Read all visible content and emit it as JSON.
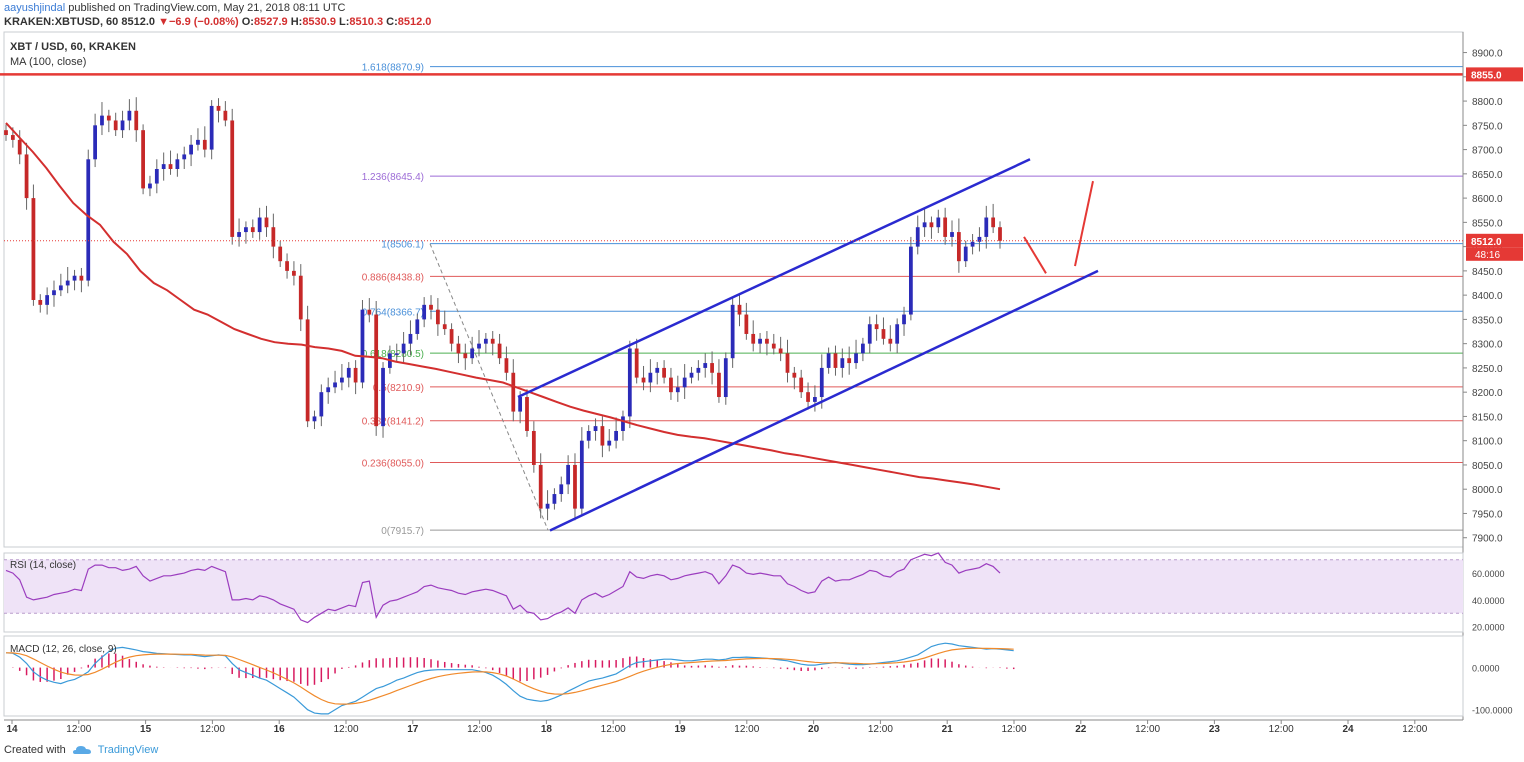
{
  "header": {
    "publisher": "aayushjindal",
    "published_text": "published on TradingView.com, May 21, 2018 08:11 UTC",
    "symbol_line": "KRAKEN:XBTUSD, 60",
    "last": "8512.0",
    "change": "−6.9 (−0.08%)",
    "open_label": "O:",
    "open": "8527.9",
    "high_label": "H:",
    "high": "8530.9",
    "low_label": "L:",
    "low": "8510.3",
    "close_label": "C:",
    "close": "8512.0"
  },
  "legend": {
    "title": "XBT / USD, 60, KRAKEN",
    "ma": "MA (100, close)",
    "rsi": "RSI (14, close)",
    "macd": "MACD (12, 26, close, 9)"
  },
  "footer": {
    "created_with": "Created with",
    "brand": "TradingView"
  },
  "colors": {
    "bull": "#2b2bb8",
    "bear": "#c62828",
    "ma": "#d32f2f",
    "channel": "#2a2ad0",
    "fib_blue": "#4a90d9",
    "fib_purple": "#9c6bd6",
    "fib_red": "#e05a5a",
    "rsi": "#9b3dbf",
    "macd": "#3a9ad9",
    "signal": "#f08a2c",
    "hist": "#d81b60",
    "resistance": "#e53935"
  },
  "chart_data": [
    {
      "type": "candlestick",
      "title": "XBT / USD, 60, KRAKEN",
      "ylim": [
        7885,
        8930
      ],
      "yticks": [
        "8900.0",
        "8850.0",
        "8800.0",
        "8750.0",
        "8700.0",
        "8650.0",
        "8600.0",
        "8550.0",
        "8500.0",
        "8450.0",
        "8400.0",
        "8350.0",
        "8300.0",
        "8250.0",
        "8200.0",
        "8150.0",
        "8100.0",
        "8050.0",
        "8000.0",
        "7950.0",
        "7900.0"
      ],
      "xticks": [
        "14",
        "12:00",
        "15",
        "12:00",
        "16",
        "12:00",
        "17",
        "12:00",
        "18",
        "12:00",
        "19",
        "12:00",
        "20",
        "12:00",
        "21",
        "12:00",
        "22",
        "12:00",
        "23",
        "12:00",
        "24",
        "12:00"
      ],
      "price_labels": {
        "resistance": "8855.0",
        "last": "8512.0",
        "countdown": "48:16"
      },
      "resistance_level": 8855.0,
      "last_price": 8512.0,
      "fib_levels": [
        {
          "ratio": "1.618",
          "value": 8870.9,
          "label": "1.618(8870.9)",
          "color": "blue"
        },
        {
          "ratio": "1.236",
          "value": 8645.4,
          "label": "1.236(8645.4)",
          "color": "purple"
        },
        {
          "ratio": "1",
          "value": 8506.1,
          "label": "1(8506.1)",
          "color": "blue"
        },
        {
          "ratio": "0.886",
          "value": 8438.8,
          "label": "0.886(8438.8)",
          "color": "red"
        },
        {
          "ratio": "0.764",
          "value": 8366.7,
          "label": "0.764(8366.7)",
          "color": "blue"
        },
        {
          "ratio": "0.618",
          "value": 8280.5,
          "label": "0.618(8280.5)",
          "color": "green"
        },
        {
          "ratio": "0.5",
          "value": 8210.9,
          "label": "0.5(8210.9)",
          "color": "red"
        },
        {
          "ratio": "0.382",
          "value": 8141.2,
          "label": "0.382(8141.2)",
          "color": "red"
        },
        {
          "ratio": "0.236",
          "value": 8055.0,
          "label": "0.236(8055.0)",
          "color": "red"
        },
        {
          "ratio": "0",
          "value": 7915.7,
          "label": "0(7915.7)",
          "color": "gray"
        }
      ],
      "closes": [
        8730,
        8720,
        8690,
        8600,
        8390,
        8380,
        8400,
        8410,
        8420,
        8430,
        8440,
        8430,
        8680,
        8750,
        8770,
        8760,
        8740,
        8760,
        8780,
        8740,
        8620,
        8630,
        8660,
        8670,
        8660,
        8680,
        8690,
        8710,
        8720,
        8700,
        8790,
        8780,
        8760,
        8520,
        8530,
        8540,
        8530,
        8560,
        8540,
        8500,
        8470,
        8450,
        8440,
        8350,
        8140,
        8150,
        8200,
        8210,
        8220,
        8230,
        8250,
        8220,
        8370,
        8360,
        8130,
        8250,
        8280,
        8280,
        8300,
        8320,
        8350,
        8380,
        8370,
        8340,
        8330,
        8300,
        8280,
        8270,
        8290,
        8300,
        8310,
        8300,
        8270,
        8240,
        8160,
        8190,
        8120,
        8050,
        7960,
        7970,
        7990,
        8010,
        8050,
        7960,
        8100,
        8120,
        8130,
        8090,
        8100,
        8120,
        8150,
        8290,
        8230,
        8220,
        8240,
        8250,
        8230,
        8200,
        8210,
        8230,
        8240,
        8250,
        8260,
        8240,
        8190,
        8270,
        8380,
        8360,
        8320,
        8300,
        8310,
        8300,
        8290,
        8280,
        8240,
        8230,
        8200,
        8180,
        8190,
        8250,
        8280,
        8250,
        8270,
        8260,
        8280,
        8300,
        8340,
        8330,
        8310,
        8300,
        8340,
        8360,
        8500,
        8540,
        8550,
        8540,
        8560,
        8520,
        8530,
        8470,
        8500,
        8510,
        8520,
        8560,
        8540,
        8512
      ],
      "ma100": [
        8755,
        8725,
        8695,
        8662,
        8625,
        8590,
        8565,
        8545,
        8510,
        8485,
        8450,
        8425,
        8410,
        8390,
        8370,
        8360,
        8345,
        8330,
        8320,
        8310,
        8303,
        8300,
        8298,
        8293,
        8290,
        8285,
        8275,
        8273,
        8270,
        8263,
        8258,
        8253,
        8248,
        8242,
        8236,
        8230,
        8225,
        8220,
        8210,
        8200,
        8190,
        8180,
        8170,
        8162,
        8155,
        8148,
        8140,
        8132,
        8125,
        8118,
        8112,
        8108,
        8105,
        8100,
        8095,
        8090,
        8085,
        8080,
        8074,
        8070,
        8065,
        8060,
        8055,
        8050,
        8045,
        8040,
        8035,
        8030,
        8025,
        8022,
        8018,
        8014,
        8010,
        8005,
        8000
      ],
      "channel_upper": [
        [
          8210,
          8190
        ],
        [
          8560,
          8680
        ]
      ],
      "channel_lower": [
        [
          7915,
          8450
        ]
      ],
      "rsi": {
        "ylim": [
          16,
          75
        ],
        "yticks": [
          "60.0000",
          "40.0000",
          "20.0000"
        ],
        "band": [
          30,
          70
        ],
        "values": [
          62,
          60,
          55,
          42,
          40,
          41,
          42,
          44,
          45,
          46,
          48,
          47,
          63,
          66,
          66,
          64,
          64,
          62,
          63,
          65,
          58,
          54,
          56,
          58,
          58,
          59,
          60,
          62,
          63,
          62,
          65,
          63,
          61,
          40,
          40,
          41,
          40,
          43,
          42,
          40,
          37,
          35,
          33,
          25,
          23,
          27,
          30,
          33,
          32,
          34,
          36,
          35,
          53,
          54,
          27,
          36,
          39,
          40,
          42,
          44,
          46,
          50,
          51,
          49,
          48,
          47,
          45,
          44,
          46,
          47,
          48,
          47,
          45,
          43,
          33,
          36,
          31,
          30,
          25,
          26,
          29,
          31,
          34,
          30,
          40,
          43,
          45,
          42,
          44,
          47,
          50,
          61,
          57,
          56,
          58,
          59,
          58,
          55,
          56,
          58,
          59,
          60,
          61,
          59,
          52,
          58,
          66,
          64,
          60,
          59,
          60,
          59,
          58,
          58,
          52,
          50,
          47,
          45,
          46,
          54,
          57,
          54,
          55,
          55,
          57,
          59,
          62,
          61,
          58,
          57,
          61,
          63,
          70,
          72,
          74,
          73,
          75,
          68,
          66,
          60,
          62,
          63,
          64,
          67,
          65,
          60
        ]
      },
      "macd": {
        "ylim": [
          -115,
          75
        ],
        "yticks": [
          "0.0000",
          "-100.0000"
        ],
        "macd": [
          35,
          34,
          25,
          10,
          -10,
          -22,
          -30,
          -35,
          -38,
          -32,
          -28,
          -20,
          -10,
          10,
          25,
          38,
          46,
          48,
          45,
          42,
          38,
          36,
          34,
          33,
          32,
          31,
          30,
          30,
          28,
          26,
          28,
          30,
          28,
          10,
          -5,
          -12,
          -18,
          -25,
          -30,
          -40,
          -50,
          -60,
          -70,
          -85,
          -100,
          -108,
          -110,
          -110,
          -100,
          -90,
          -85,
          -80,
          -70,
          -60,
          -50,
          -45,
          -38,
          -30,
          -25,
          -18,
          -12,
          -8,
          -6,
          -5,
          -5,
          -5,
          -5,
          -5,
          -5,
          -8,
          -12,
          -18,
          -28,
          -40,
          -55,
          -68,
          -75,
          -78,
          -80,
          -78,
          -72,
          -65,
          -56,
          -48,
          -40,
          -32,
          -28,
          -25,
          -20,
          -15,
          -5,
          5,
          12,
          14,
          16,
          18,
          20,
          20,
          18,
          16,
          16,
          18,
          20,
          20,
          18,
          20,
          24,
          24,
          25,
          24,
          23,
          22,
          20,
          18,
          16,
          12,
          8,
          6,
          6,
          8,
          10,
          12,
          10,
          8,
          7,
          7,
          8,
          10,
          12,
          14,
          16,
          20,
          25,
          30,
          40,
          50,
          55,
          58,
          56,
          52,
          50,
          48,
          46,
          44,
          45,
          44,
          42,
          40
        ]
      }
    }
  ]
}
